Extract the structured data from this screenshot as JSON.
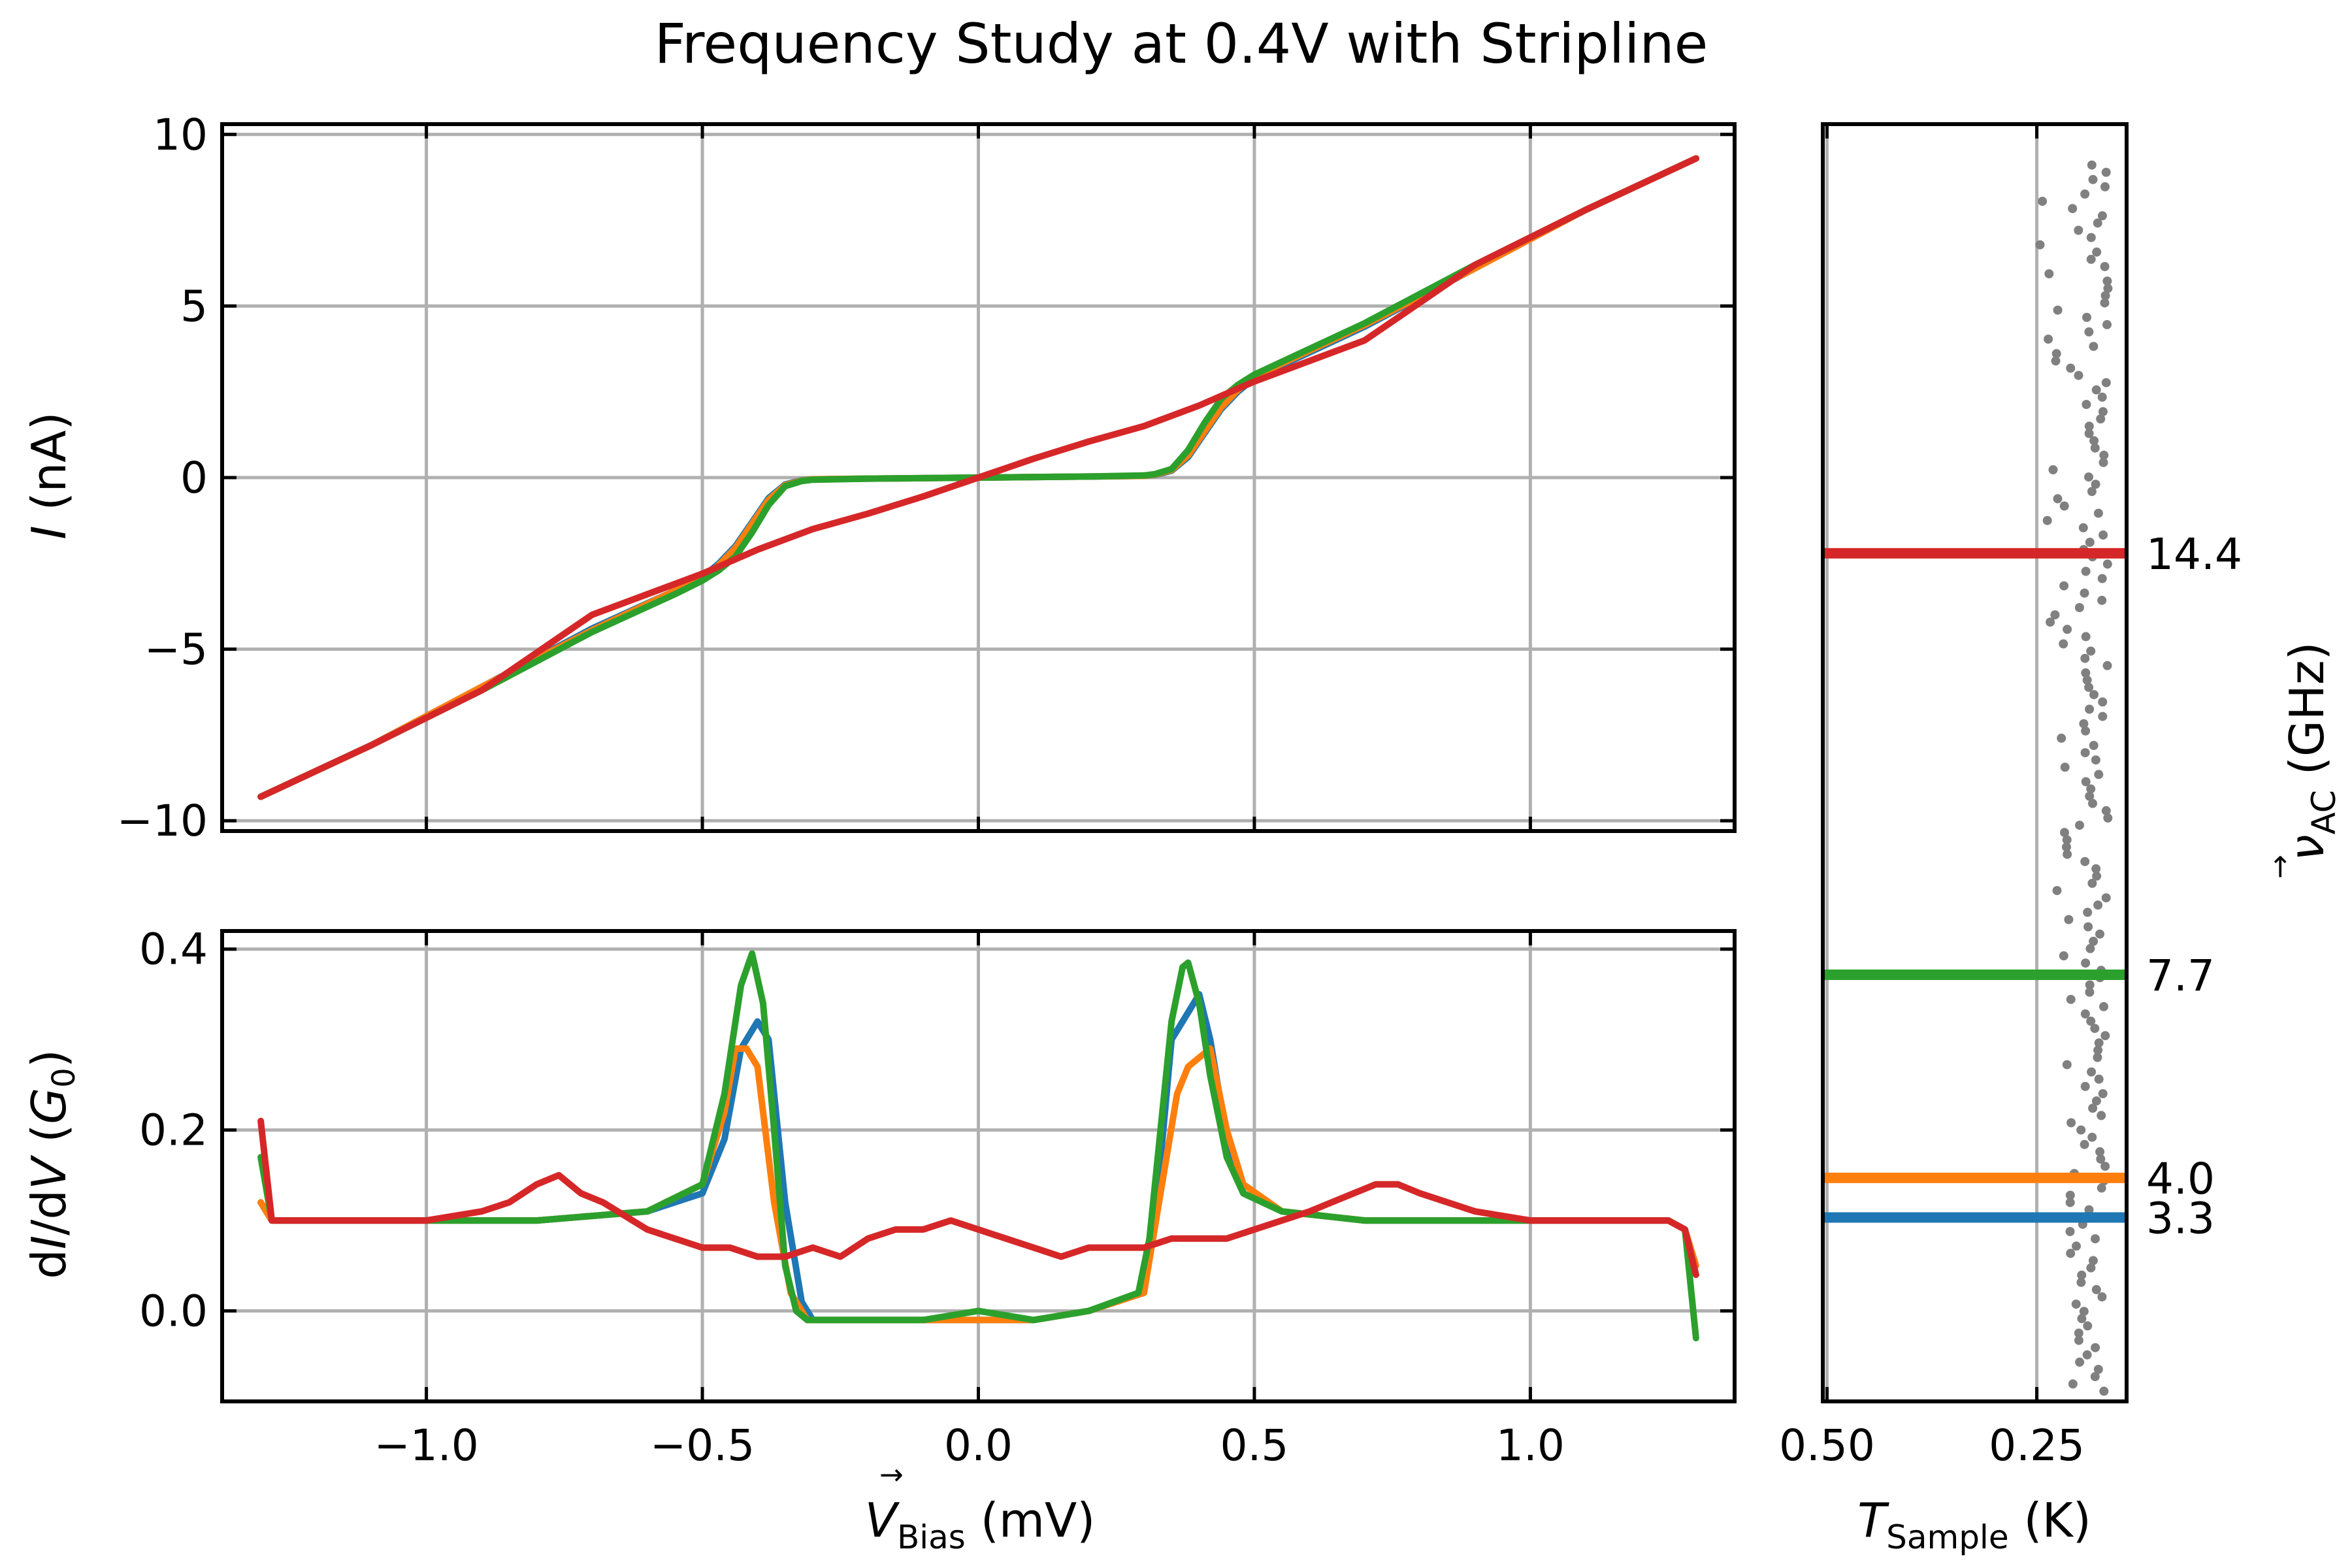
{
  "title": "Frequency Study at 0.4V with Stripline",
  "colors": {
    "blue": "#1f77b4",
    "orange": "#ff7f0e",
    "green": "#2ca02c",
    "red": "#d62728",
    "grid": "#b0b0b0",
    "points": "#808080"
  },
  "chart_data": [
    {
      "id": "iv",
      "type": "line",
      "ylabel_symbol": "I",
      "ylabel_unit": " (nA)",
      "xlim": [
        -1.37,
        1.37
      ],
      "ylim": [
        -10.3,
        10.3
      ],
      "xticks": [
        -1.0,
        -0.5,
        0.0,
        0.5,
        1.0
      ],
      "yticks": [
        -10,
        -5,
        0,
        5,
        10
      ],
      "ytick_labels": [
        "−10",
        "−5",
        "0",
        "5",
        "10"
      ],
      "grid": true,
      "series": [
        {
          "color": "blue",
          "x": [
            -1.3,
            -1.1,
            -0.9,
            -0.7,
            -0.55,
            -0.5,
            -0.47,
            -0.44,
            -0.41,
            -0.38,
            -0.35,
            -0.32,
            -0.3,
            -0.2,
            0,
            0.2,
            0.3,
            0.32,
            0.35,
            0.38,
            0.41,
            0.44,
            0.47,
            0.5,
            0.7,
            0.9,
            1.1,
            1.3
          ],
          "y": [
            -9.3,
            -7.8,
            -6.1,
            -4.4,
            -3.3,
            -2.9,
            -2.5,
            -2.0,
            -1.3,
            -0.6,
            -0.2,
            -0.08,
            -0.05,
            -0.03,
            0,
            0.03,
            0.05,
            0.08,
            0.2,
            0.6,
            1.3,
            2.0,
            2.5,
            2.9,
            4.4,
            6.1,
            7.8,
            9.3
          ]
        },
        {
          "color": "orange",
          "x": [
            -1.3,
            -1.1,
            -0.9,
            -0.7,
            -0.55,
            -0.5,
            -0.47,
            -0.44,
            -0.41,
            -0.38,
            -0.35,
            -0.32,
            -0.3,
            -0.2,
            0,
            0.2,
            0.3,
            0.32,
            0.35,
            0.38,
            0.41,
            0.44,
            0.47,
            0.5,
            0.7,
            0.9,
            1.1,
            1.3
          ],
          "y": [
            -9.3,
            -7.8,
            -6.1,
            -4.45,
            -3.3,
            -2.95,
            -2.55,
            -2.05,
            -1.35,
            -0.65,
            -0.22,
            -0.09,
            -0.05,
            -0.03,
            0,
            0.03,
            0.05,
            0.09,
            0.22,
            0.65,
            1.35,
            2.05,
            2.55,
            2.95,
            4.45,
            6.1,
            7.8,
            9.3
          ]
        },
        {
          "color": "green",
          "x": [
            -1.3,
            -1.1,
            -0.9,
            -0.7,
            -0.55,
            -0.5,
            -0.47,
            -0.44,
            -0.41,
            -0.38,
            -0.35,
            -0.32,
            -0.3,
            -0.2,
            0,
            0.2,
            0.3,
            0.32,
            0.35,
            0.38,
            0.41,
            0.44,
            0.47,
            0.5,
            0.7,
            0.9,
            1.1,
            1.3
          ],
          "y": [
            -9.3,
            -7.8,
            -6.2,
            -4.5,
            -3.4,
            -3.0,
            -2.7,
            -2.3,
            -1.6,
            -0.8,
            -0.25,
            -0.1,
            -0.06,
            -0.03,
            0,
            0.03,
            0.06,
            0.1,
            0.25,
            0.8,
            1.6,
            2.3,
            2.7,
            3.0,
            4.5,
            6.2,
            7.8,
            9.3
          ]
        },
        {
          "color": "red",
          "x": [
            -1.3,
            -1.1,
            -0.9,
            -0.8,
            -0.7,
            -0.6,
            -0.5,
            -0.4,
            -0.3,
            -0.2,
            -0.1,
            0,
            0.1,
            0.2,
            0.3,
            0.4,
            0.5,
            0.6,
            0.7,
            0.8,
            0.9,
            1.1,
            1.3
          ],
          "y": [
            -9.3,
            -7.8,
            -6.2,
            -5.1,
            -4.0,
            -3.4,
            -2.8,
            -2.1,
            -1.5,
            -1.05,
            -0.55,
            0,
            0.55,
            1.05,
            1.5,
            2.1,
            2.8,
            3.4,
            4.0,
            5.1,
            6.2,
            7.8,
            9.3
          ]
        }
      ]
    },
    {
      "id": "didv",
      "type": "line",
      "xlabel_symbol": "V",
      "xlabel_sub": "Bias",
      "xlabel_unit": " (mV)",
      "ylabel_pre": "d",
      "ylabel_symbol": "I",
      "ylabel_mid": "/d",
      "ylabel_symbol2": "V",
      "ylabel_open": " (",
      "ylabel_g": "G",
      "ylabel_gsub": "0",
      "ylabel_close": ")",
      "xlim": [
        -1.37,
        1.37
      ],
      "ylim": [
        -0.1,
        0.42
      ],
      "xticks": [
        -1.0,
        -0.5,
        0.0,
        0.5,
        1.0
      ],
      "xtick_labels": [
        "−1.0",
        "−0.5",
        "0.0",
        "0.5",
        "1.0"
      ],
      "yticks": [
        0.0,
        0.2,
        0.4
      ],
      "ytick_labels": [
        "0.0",
        "0.2",
        "0.4"
      ],
      "grid": true,
      "series": [
        {
          "color": "blue",
          "x": [
            -1.3,
            -1.28,
            -1.2,
            -1.0,
            -0.8,
            -0.6,
            -0.5,
            -0.46,
            -0.43,
            -0.4,
            -0.38,
            -0.35,
            -0.32,
            -0.3,
            -0.2,
            -0.1,
            0,
            0.1,
            0.2,
            0.3,
            0.32,
            0.35,
            0.38,
            0.4,
            0.42,
            0.45,
            0.48,
            0.55,
            0.7,
            0.9,
            1.1,
            1.25,
            1.28,
            1.3
          ],
          "y": [
            0.12,
            0.1,
            0.1,
            0.1,
            0.1,
            0.11,
            0.13,
            0.19,
            0.29,
            0.32,
            0.3,
            0.12,
            0.01,
            -0.01,
            -0.01,
            -0.01,
            -0.01,
            -0.01,
            0.0,
            0.02,
            0.1,
            0.3,
            0.33,
            0.35,
            0.3,
            0.19,
            0.13,
            0.11,
            0.1,
            0.1,
            0.1,
            0.1,
            0.09,
            0.05
          ]
        },
        {
          "color": "orange",
          "x": [
            -1.3,
            -1.28,
            -1.2,
            -1.0,
            -0.8,
            -0.6,
            -0.5,
            -0.46,
            -0.44,
            -0.42,
            -0.4,
            -0.37,
            -0.34,
            -0.31,
            -0.2,
            -0.1,
            0,
            0.1,
            0.2,
            0.3,
            0.33,
            0.36,
            0.38,
            0.4,
            0.42,
            0.45,
            0.48,
            0.55,
            0.7,
            0.9,
            1.1,
            1.25,
            1.28,
            1.3
          ],
          "y": [
            0.12,
            0.1,
            0.1,
            0.1,
            0.1,
            0.11,
            0.14,
            0.22,
            0.29,
            0.29,
            0.27,
            0.12,
            0.02,
            -0.01,
            -0.01,
            -0.01,
            -0.01,
            -0.01,
            0.0,
            0.02,
            0.13,
            0.24,
            0.27,
            0.28,
            0.29,
            0.2,
            0.14,
            0.11,
            0.1,
            0.1,
            0.1,
            0.1,
            0.09,
            0.05
          ]
        },
        {
          "color": "green",
          "x": [
            -1.3,
            -1.28,
            -1.2,
            -1.0,
            -0.8,
            -0.6,
            -0.5,
            -0.46,
            -0.43,
            -0.41,
            -0.39,
            -0.37,
            -0.35,
            -0.33,
            -0.31,
            -0.2,
            -0.1,
            0,
            0.1,
            0.2,
            0.29,
            0.31,
            0.33,
            0.35,
            0.37,
            0.38,
            0.4,
            0.42,
            0.45,
            0.48,
            0.55,
            0.7,
            0.9,
            1.1,
            1.25,
            1.28,
            1.3
          ],
          "y": [
            0.17,
            0.1,
            0.1,
            0.1,
            0.1,
            0.11,
            0.14,
            0.24,
            0.36,
            0.395,
            0.34,
            0.2,
            0.05,
            0.0,
            -0.01,
            -0.01,
            -0.01,
            0.0,
            -0.01,
            0.0,
            0.02,
            0.08,
            0.2,
            0.32,
            0.38,
            0.385,
            0.34,
            0.26,
            0.17,
            0.13,
            0.11,
            0.1,
            0.1,
            0.1,
            0.1,
            0.09,
            -0.03
          ]
        },
        {
          "color": "red",
          "x": [
            -1.3,
            -1.28,
            -1.25,
            -1.1,
            -1.0,
            -0.9,
            -0.85,
            -0.8,
            -0.76,
            -0.72,
            -0.68,
            -0.6,
            -0.5,
            -0.45,
            -0.4,
            -0.35,
            -0.3,
            -0.25,
            -0.2,
            -0.15,
            -0.1,
            -0.05,
            0,
            0.05,
            0.1,
            0.15,
            0.2,
            0.25,
            0.3,
            0.35,
            0.4,
            0.45,
            0.5,
            0.6,
            0.68,
            0.72,
            0.76,
            0.8,
            0.85,
            0.9,
            1.0,
            1.1,
            1.25,
            1.28,
            1.3
          ],
          "y": [
            0.21,
            0.1,
            0.1,
            0.1,
            0.1,
            0.11,
            0.12,
            0.14,
            0.15,
            0.13,
            0.12,
            0.09,
            0.07,
            0.07,
            0.06,
            0.06,
            0.07,
            0.06,
            0.08,
            0.09,
            0.09,
            0.1,
            0.09,
            0.08,
            0.07,
            0.06,
            0.07,
            0.07,
            0.07,
            0.08,
            0.08,
            0.08,
            0.09,
            0.11,
            0.13,
            0.14,
            0.14,
            0.13,
            0.12,
            0.11,
            0.1,
            0.1,
            0.1,
            0.09,
            0.04
          ]
        }
      ]
    },
    {
      "id": "freq",
      "type": "scatter",
      "xlabel_symbol": "T",
      "xlabel_sub": "Sample",
      "xlabel_unit": " (K)",
      "ylabel_symbol": "ν",
      "ylabel_arrow": "→",
      "ylabel_sub": "AC",
      "ylabel_unit": " (GHz)",
      "xlim": [
        0.505,
        0.143
      ],
      "xticks": [
        0.5,
        0.25
      ],
      "xtick_labels": [
        "0.50",
        "0.25"
      ],
      "grid": true,
      "markers": [
        {
          "color": "red",
          "label": "14.4",
          "level": 0.664
        },
        {
          "color": "green",
          "label": "7.7",
          "level": 0.334
        },
        {
          "color": "orange",
          "label": "4.0",
          "level": 0.175
        },
        {
          "color": "blue",
          "label": "3.3",
          "level": 0.144
        }
      ],
      "scatter_fraction": [
        0,
        1
      ]
    }
  ]
}
